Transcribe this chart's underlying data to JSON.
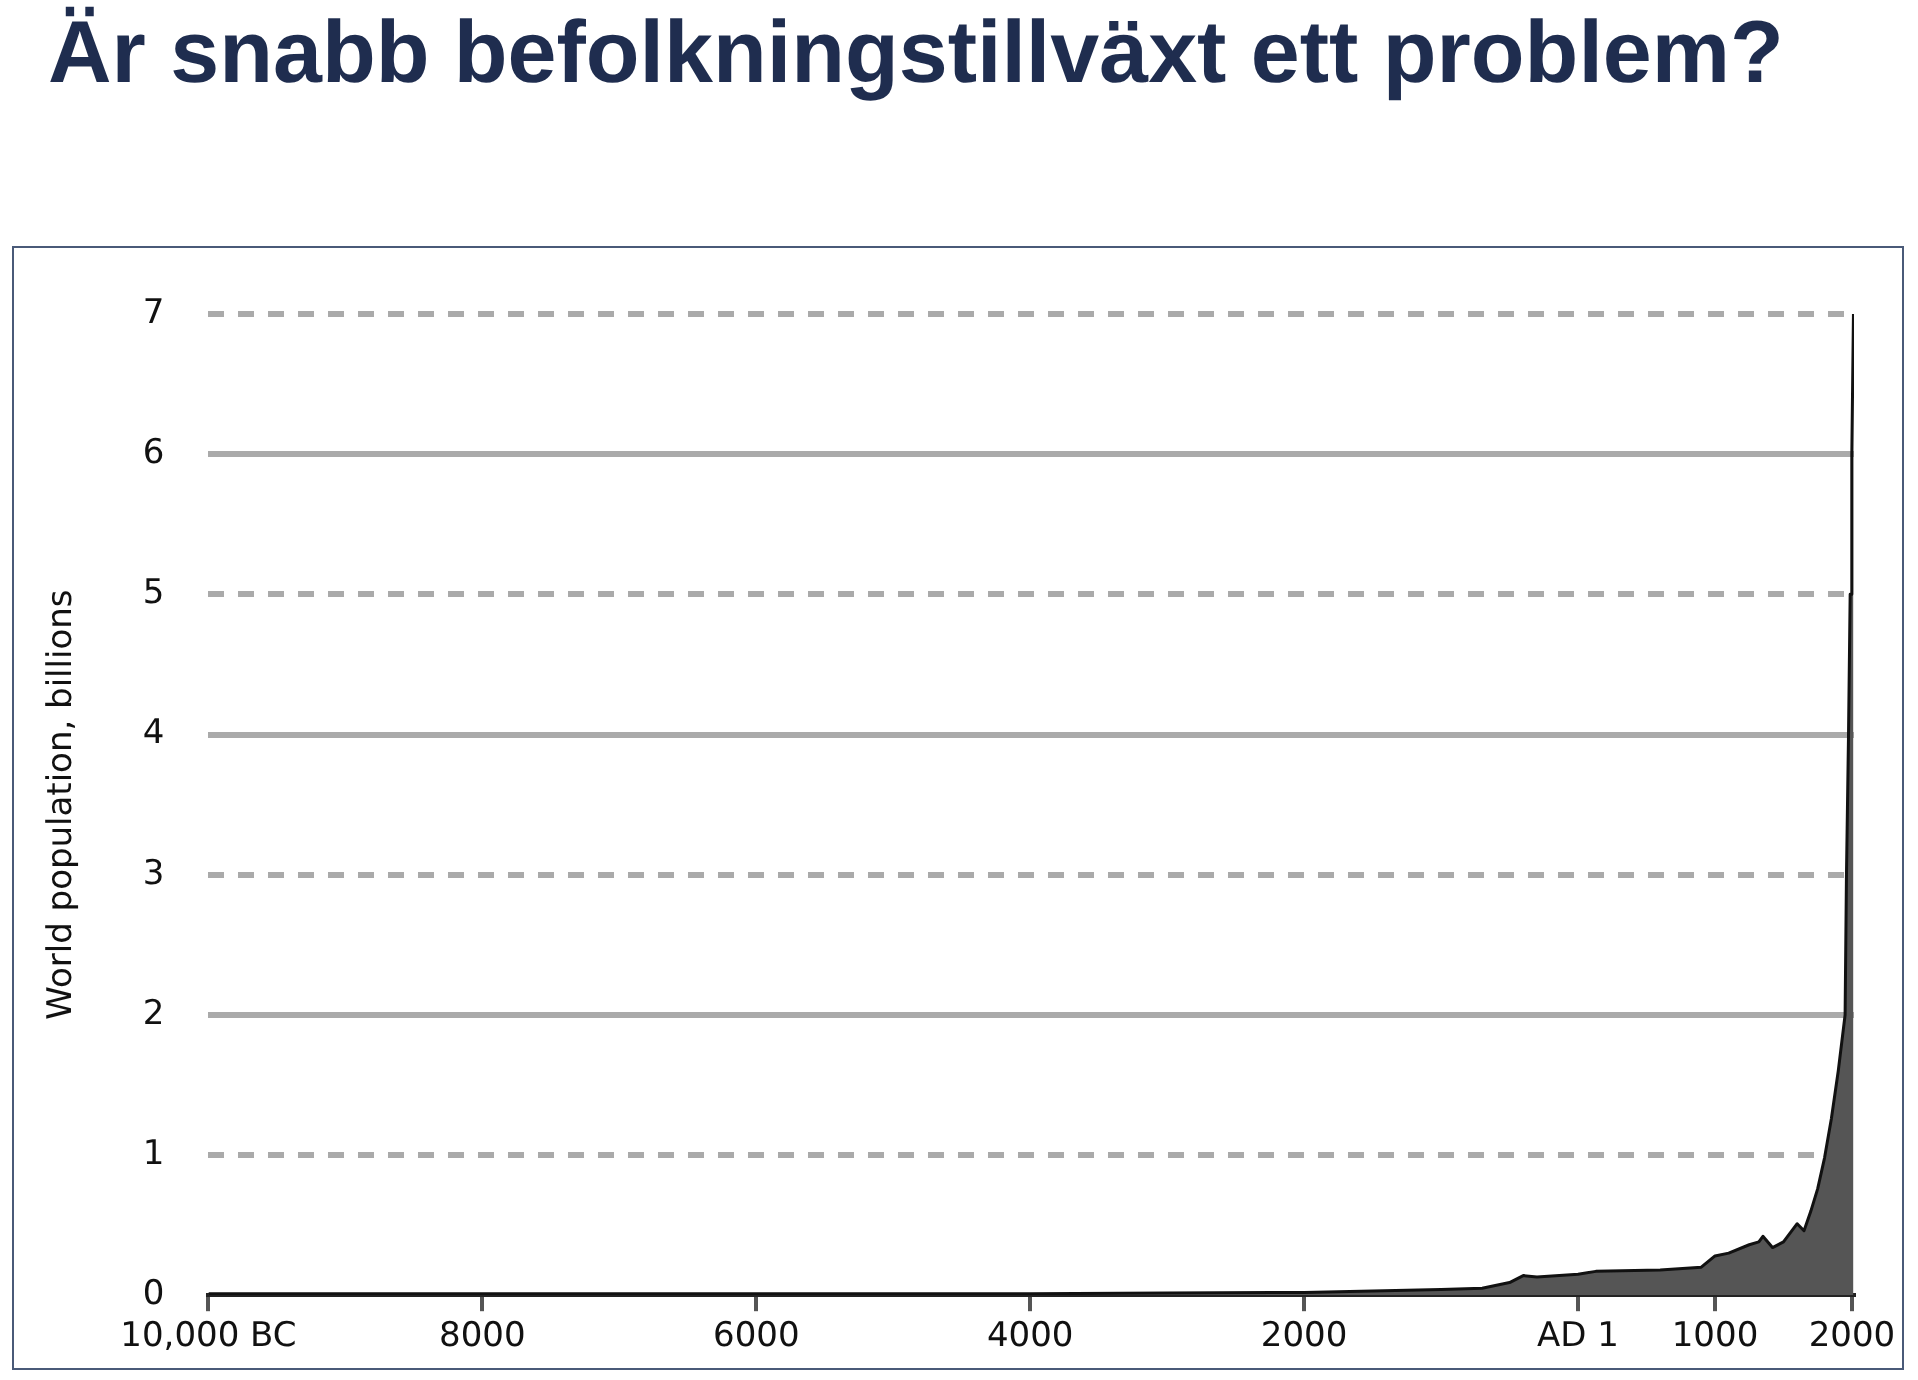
{
  "chart_data": {
    "type": "area",
    "title": "Är snabb befolkningstillväxt ett problem?",
    "ylabel": "World population, billions",
    "x": [
      -10000,
      -8000,
      -6000,
      -4000,
      -3000,
      -2000,
      -1500,
      -1000,
      -700,
      -500,
      -400,
      -300,
      0,
      130,
      600,
      900,
      1000,
      1100,
      1250,
      1320,
      1350,
      1420,
      1500,
      1600,
      1650,
      1700,
      1750,
      1800,
      1850,
      1900,
      1950,
      1960,
      1975,
      1987,
      1999,
      2011
    ],
    "series": [
      {
        "color": "#555555",
        "values": [
          0.01,
          0.01,
          0.01,
          0.01,
          0.015,
          0.02,
          0.03,
          0.04,
          0.05,
          0.09,
          0.14,
          0.13,
          0.15,
          0.17,
          0.18,
          0.2,
          0.28,
          0.3,
          0.36,
          0.38,
          0.42,
          0.34,
          0.38,
          0.51,
          0.46,
          0.6,
          0.76,
          0.98,
          1.26,
          1.6,
          2.0,
          3.0,
          4.0,
          5.0,
          6.0,
          7.0
        ]
      }
    ],
    "xlim": [
      -10000,
      2015
    ],
    "xticks": [
      {
        "value": -10000,
        "label": "10,000 BC"
      },
      {
        "value": -8000,
        "label": "8000"
      },
      {
        "value": -6000,
        "label": "6000"
      },
      {
        "value": -4000,
        "label": "4000"
      },
      {
        "value": -2000,
        "label": "2000"
      },
      {
        "value": 0,
        "label": "AD 1"
      },
      1000,
      2000
    ],
    "ylim": [
      0,
      7
    ],
    "yticks": [
      0,
      1,
      2,
      3,
      4,
      5,
      6,
      7
    ],
    "grid": "y",
    "legend": false
  }
}
